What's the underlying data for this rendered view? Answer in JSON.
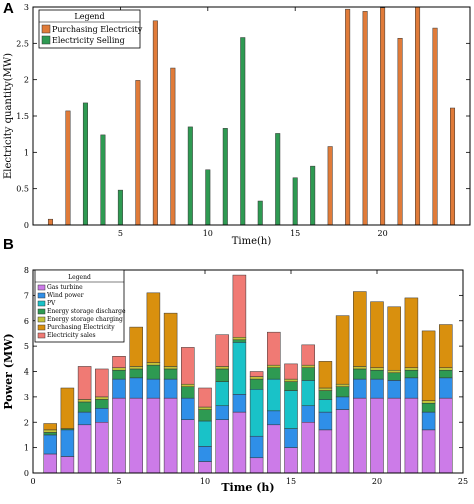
{
  "panels": [
    {
      "letter": "A",
      "chart_data": {
        "type": "bar",
        "xlabel": "Time(h)",
        "ylabel": "Electricity quantity(MW)",
        "xlim": [
          0,
          25
        ],
        "ylim": [
          0,
          3
        ],
        "x_ticks": [
          5,
          10,
          15,
          20
        ],
        "y_ticks": [
          0,
          0.5,
          1,
          1.5,
          2,
          2.5,
          3
        ],
        "grid": false,
        "legend": {
          "title": "Legend",
          "placement": "top-left"
        },
        "series": [
          {
            "name": "Purchasing Electricity",
            "color": "#E07B39",
            "points": [
              [
                1,
                0.08
              ],
              [
                2,
                1.57
              ],
              [
                6,
                1.99
              ],
              [
                7,
                2.81
              ],
              [
                8,
                2.16
              ],
              [
                17,
                1.08
              ],
              [
                18,
                2.97
              ],
              [
                19,
                2.94
              ],
              [
                20,
                2.99
              ],
              [
                21,
                2.57
              ],
              [
                22,
                3.0
              ],
              [
                23,
                2.71
              ],
              [
                24,
                1.61
              ]
            ]
          },
          {
            "name": "Electricity Selling",
            "color": "#2E9A52",
            "points": [
              [
                3,
                1.68
              ],
              [
                4,
                1.24
              ],
              [
                5,
                0.48
              ],
              [
                9,
                1.35
              ],
              [
                10,
                0.76
              ],
              [
                11,
                1.33
              ],
              [
                12,
                2.58
              ],
              [
                13,
                0.33
              ],
              [
                14,
                1.26
              ],
              [
                15,
                0.65
              ],
              [
                16,
                0.81
              ]
            ]
          }
        ]
      }
    },
    {
      "letter": "B",
      "chart_data": {
        "type": "bar",
        "stacked": true,
        "xlabel": "Time (h)",
        "ylabel": "Power (MW)",
        "xlim": [
          0,
          25
        ],
        "ylim": [
          0,
          8
        ],
        "x_ticks": [
          0,
          5,
          10,
          15,
          20,
          25
        ],
        "y_ticks": [
          0,
          1,
          2,
          3,
          4,
          5,
          6,
          7,
          8
        ],
        "grid": false,
        "legend": {
          "title": "Legend",
          "placement": "top-left"
        },
        "categories": [
          1,
          2,
          3,
          4,
          5,
          6,
          7,
          8,
          9,
          10,
          11,
          12,
          13,
          14,
          15,
          16,
          17,
          18,
          19,
          20,
          21,
          22,
          23,
          24
        ],
        "series": [
          {
            "name": "Gas turbine",
            "color": "#CC7BE8",
            "values": [
              0.75,
              0.65,
              1.9,
              2.0,
              2.95,
              2.95,
              2.95,
              2.95,
              2.1,
              0.45,
              2.1,
              2.4,
              0.6,
              1.9,
              1.0,
              2.0,
              1.7,
              2.5,
              2.95,
              2.95,
              2.95,
              2.95,
              1.7,
              2.95
            ]
          },
          {
            "name": "Wind power",
            "color": "#2F8FE8",
            "values": [
              0.75,
              1.05,
              0.5,
              0.55,
              0.75,
              0.8,
              0.75,
              0.75,
              0.85,
              0.6,
              0.55,
              0.7,
              0.85,
              0.55,
              0.75,
              0.65,
              0.7,
              0.5,
              0.75,
              0.75,
              0.7,
              0.8,
              0.7,
              0.8
            ]
          },
          {
            "name": "PV",
            "color": "#19C2C8",
            "values": [
              0,
              0,
              0,
              0,
              0,
              0,
              0,
              0,
              0,
              1.0,
              0.95,
              2.05,
              1.85,
              1.25,
              1.5,
              1.0,
              0.5,
              0,
              0,
              0,
              0,
              0,
              0,
              0
            ]
          },
          {
            "name": "Energy storage discharge",
            "color": "#2E9A52",
            "values": [
              0.1,
              0.05,
              0.4,
              0.35,
              0.35,
              0.35,
              0.55,
              0.4,
              0.45,
              0.45,
              0.5,
              0.1,
              0.4,
              0.45,
              0.35,
              0.5,
              0.35,
              0.4,
              0.4,
              0.35,
              0.3,
              0.3,
              0.35,
              0.3
            ]
          },
          {
            "name": "Energy storage charging",
            "color": "#C3C43A",
            "values": [
              0.1,
              0,
              0.1,
              0.1,
              0.1,
              0.1,
              0.1,
              0.1,
              0.1,
              0.1,
              0.1,
              0.1,
              0.1,
              0.1,
              0.1,
              0.1,
              0.1,
              0.1,
              0.1,
              0.1,
              0.1,
              0.1,
              0.1,
              0.1
            ]
          },
          {
            "name": "Purchasing Electricity",
            "color": "#D9900E",
            "values": [
              0.25,
              1.6,
              0,
              0,
              0,
              1.55,
              2.75,
              2.1,
              0,
              0,
              0,
              0,
              0,
              0,
              0,
              0,
              1.05,
              2.7,
              2.95,
              2.6,
              2.5,
              2.75,
              2.75,
              1.7
            ]
          },
          {
            "name": "Electricity sales",
            "color": "#F07A74",
            "values": [
              0,
              0,
              1.3,
              1.1,
              0.45,
              0,
              0,
              0,
              1.45,
              0.75,
              1.25,
              2.45,
              0.2,
              1.3,
              0.6,
              0.8,
              0,
              0,
              0,
              0,
              0,
              0,
              0,
              0
            ]
          }
        ]
      }
    }
  ]
}
